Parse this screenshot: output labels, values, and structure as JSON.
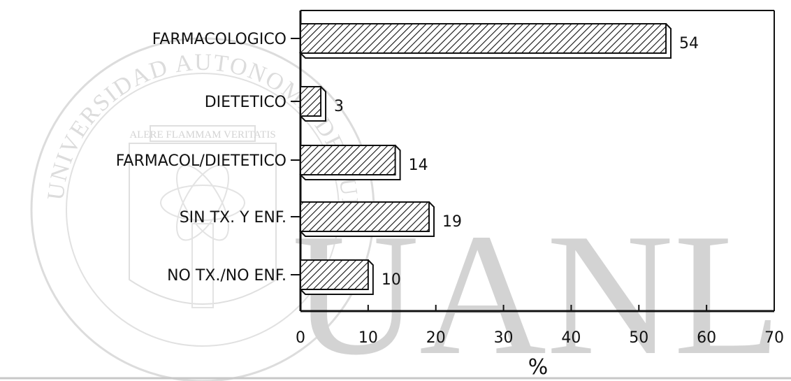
{
  "chart_data": {
    "type": "bar",
    "orientation": "horizontal",
    "categories": [
      "FARMACOLOGICO",
      "DIETETICO",
      "FARMACOL/DIETETICO",
      "SIN TX. Y ENF.",
      "NO TX./NO ENF."
    ],
    "values": [
      54,
      3,
      14,
      19,
      10
    ],
    "value_labels": [
      "54",
      "3",
      "14",
      "19",
      "10"
    ],
    "xlabel": "%",
    "ylabel": "",
    "xlim": [
      0,
      70
    ],
    "xticks": [
      "0",
      "10",
      "20",
      "30",
      "40",
      "50",
      "60",
      "70"
    ],
    "grid": false,
    "bar_style": "diagonal hatch with 3D shadow",
    "bar_color": "#111111"
  },
  "watermark": {
    "seal_text": "UNIVERSIDAD AUTONOMA DE NUEVO LEON",
    "motto": "ALERE FLAMMAM VERITATIS",
    "letters": "UANL",
    "color": "#cfcfcf"
  }
}
